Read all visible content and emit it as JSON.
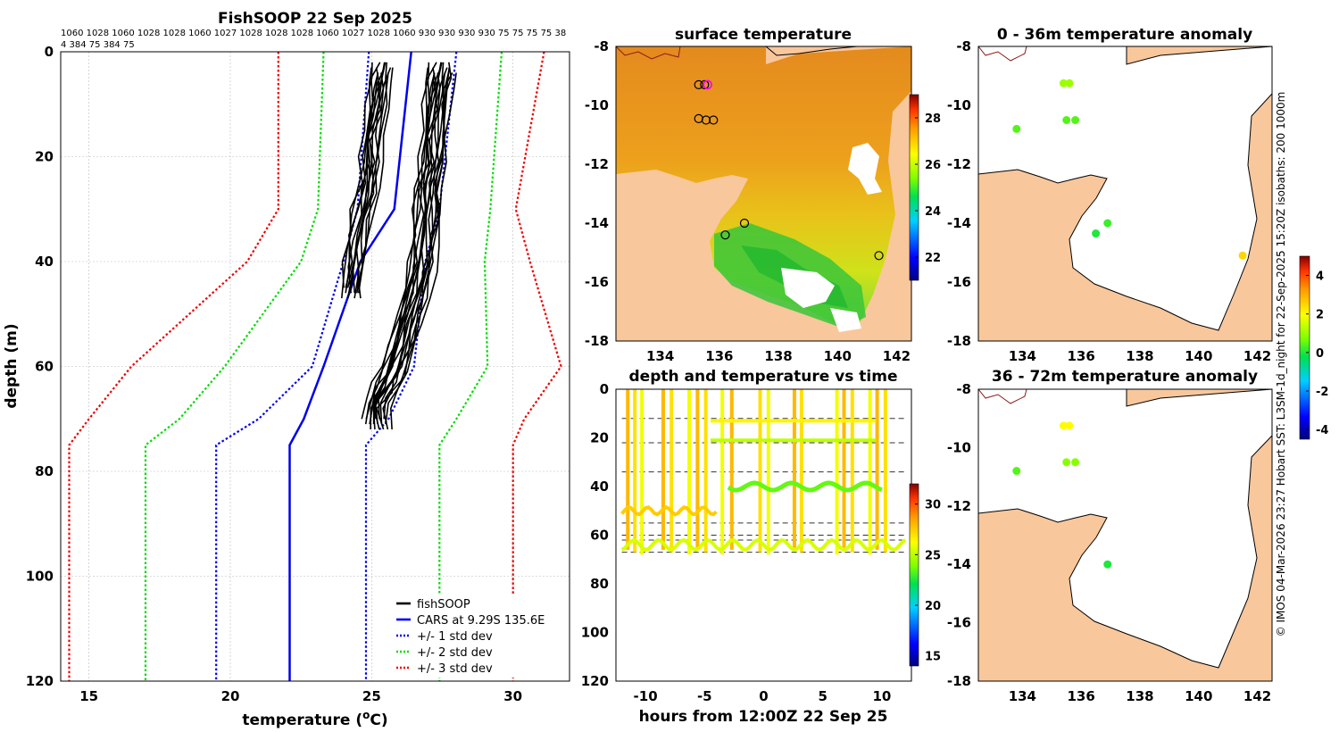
{
  "chart_data": [
    {
      "type": "line",
      "title": "FishSOOP 22 Sep 2025",
      "xlabel": "temperature (°C)",
      "xlabel_parts": [
        "temperature (",
        "o",
        "C)"
      ],
      "ylabel": "depth (m)",
      "xlim": [
        14,
        32
      ],
      "ylim": [
        120,
        0
      ],
      "xticks": [
        "15",
        "20",
        "25",
        "30"
      ],
      "yticks": [
        "0",
        "20",
        "40",
        "60",
        "80",
        "100",
        "120"
      ],
      "pressure_line1": "1060 1028 1060 1028 1028 1060 1027 1028 1028 1028 1060 1027 1028 1060 930 930 930 930 75 75 75 75 38",
      "pressure_line2": "4 384 75 384 75",
      "depths": [
        0,
        30,
        40,
        60,
        70,
        75,
        120
      ],
      "series": [
        {
          "name": "CARS at 9.29S 135.6E",
          "color": "#0000ee",
          "style": "solid",
          "temps": [
            26.4,
            25.8,
            24.6,
            23.3,
            22.6,
            22.1,
            22.1
          ]
        },
        {
          "name": "+/- 1 std dev",
          "color": "#0000ee",
          "style": "dotted",
          "temps": [
            24.9,
            24.5,
            24.0,
            22.9,
            21.0,
            19.5,
            19.5
          ],
          "temps2": [
            28.0,
            27.4,
            26.9,
            26.5,
            25.6,
            24.8,
            24.8
          ]
        },
        {
          "name": "+/- 2 std dev",
          "color": "#00dd00",
          "style": "dotted",
          "temps": [
            23.3,
            23.1,
            22.5,
            19.8,
            18.2,
            17.0,
            17.0
          ],
          "temps2": [
            29.6,
            29.2,
            29.0,
            29.1,
            28.0,
            27.4,
            27.4
          ]
        },
        {
          "name": "+/- 3 std dev",
          "color": "#ee0000",
          "style": "dotted",
          "temps": [
            21.7,
            21.7,
            20.6,
            16.5,
            15.0,
            14.3,
            14.3
          ],
          "temps2": [
            31.1,
            30.1,
            30.6,
            31.7,
            30.4,
            30.0,
            30.0
          ]
        }
      ],
      "legend": [
        {
          "label": "fishSOOP",
          "color": "#000000",
          "style": "solid"
        },
        {
          "label": "CARS at 9.29S 135.6E",
          "color": "#0000ee",
          "style": "solid"
        },
        {
          "label": "+/- 1 std dev",
          "color": "#0000ee",
          "style": "dotted"
        },
        {
          "label": "+/- 2 std dev",
          "color": "#00dd00",
          "style": "dotted"
        },
        {
          "label": "+/- 3 std dev",
          "color": "#ee0000",
          "style": "dotted"
        }
      ],
      "fishsoop_profiles": [
        {
          "group": "shallow",
          "count": 14,
          "depths": [
            2,
            5,
            10,
            15,
            20,
            25,
            30,
            35,
            40,
            45
          ],
          "temps": [
            25.4,
            25.3,
            25.2,
            25.0,
            25.0,
            24.9,
            24.7,
            24.5,
            24.4,
            24.3
          ]
        },
        {
          "group": "deep",
          "count": 18,
          "depths": [
            2,
            5,
            10,
            15,
            20,
            25,
            30,
            35,
            40,
            45,
            50,
            55,
            60,
            63,
            66,
            70
          ],
          "temps": [
            27.5,
            27.4,
            27.3,
            27.2,
            27.2,
            27.0,
            27.0,
            26.9,
            26.8,
            26.6,
            26.4,
            26.1,
            25.8,
            25.5,
            25.2,
            25.2
          ]
        }
      ]
    },
    {
      "type": "heatmap",
      "title": "surface temperature",
      "xticks": [
        "134",
        "136",
        "138",
        "140",
        "142"
      ],
      "yticks": [
        "-8",
        "-10",
        "-12",
        "-14",
        "-16",
        "-18"
      ],
      "xlim": [
        132.5,
        142.5
      ],
      "ylim": [
        -18,
        -8
      ],
      "colorbar": {
        "ticks": [
          "22",
          "24",
          "26",
          "28"
        ],
        "range": [
          21,
          29
        ]
      },
      "stations": [
        {
          "lon": 135.3,
          "lat": -9.3
        },
        {
          "lon": 135.5,
          "lat": -9.3
        },
        {
          "lon": 135.6,
          "lat": -9.3
        },
        {
          "lon": 135.3,
          "lat": -10.45
        },
        {
          "lon": 135.55,
          "lat": -10.5
        },
        {
          "lon": 135.8,
          "lat": -10.5
        },
        {
          "lon": 136.85,
          "lat": -14.0
        },
        {
          "lon": 136.2,
          "lat": -14.4
        },
        {
          "lon": 141.4,
          "lat": -15.1
        }
      ]
    },
    {
      "type": "scatter",
      "title": "depth and temperature vs time",
      "xlabel": "hours from 12:00Z 22 Sep 25",
      "xticks": [
        "-10",
        "-5",
        "0",
        "5",
        "10"
      ],
      "yticks": [
        "0",
        "20",
        "40",
        "60",
        "80",
        "100",
        "120"
      ],
      "xlim": [
        -12.5,
        12.5
      ],
      "ylim": [
        120,
        0
      ],
      "colorbar": {
        "ticks": [
          "15",
          "20",
          "25",
          "30"
        ],
        "range": [
          14,
          32
        ]
      },
      "reference_depths": [
        12,
        22,
        34,
        55,
        60,
        62,
        67
      ]
    },
    {
      "type": "scatter",
      "title": "0 - 36m temperature anomaly",
      "xticks": [
        "134",
        "136",
        "138",
        "140",
        "142"
      ],
      "yticks": [
        "-8",
        "-10",
        "-12",
        "-14",
        "-16",
        "-18"
      ],
      "points": [
        {
          "lon": 135.4,
          "lat": -9.25,
          "anomaly": 1.0
        },
        {
          "lon": 135.6,
          "lat": -9.25,
          "anomaly": 1.0
        },
        {
          "lon": 135.5,
          "lat": -10.5,
          "anomaly": 0.4
        },
        {
          "lon": 135.8,
          "lat": -10.5,
          "anomaly": 0.4
        },
        {
          "lon": 133.8,
          "lat": -10.8,
          "anomaly": 0.4
        },
        {
          "lon": 136.9,
          "lat": -14.0,
          "anomaly": 0.2
        },
        {
          "lon": 136.5,
          "lat": -14.35,
          "anomaly": 0.0
        },
        {
          "lon": 141.5,
          "lat": -15.1,
          "anomaly": 2.5
        }
      ]
    },
    {
      "type": "scatter",
      "title": "36 - 72m temperature anomaly",
      "xticks": [
        "134",
        "136",
        "138",
        "140",
        "142"
      ],
      "yticks": [
        "-8",
        "-10",
        "-12",
        "-14",
        "-16",
        "-18"
      ],
      "points": [
        {
          "lon": 135.4,
          "lat": -9.25,
          "anomaly": 2.0
        },
        {
          "lon": 135.6,
          "lat": -9.25,
          "anomaly": 2.0
        },
        {
          "lon": 135.5,
          "lat": -10.5,
          "anomaly": 0.8
        },
        {
          "lon": 135.8,
          "lat": -10.5,
          "anomaly": 0.8
        },
        {
          "lon": 133.8,
          "lat": -10.8,
          "anomaly": 0.4
        },
        {
          "lon": 136.9,
          "lat": -14.0,
          "anomaly": 0.0
        }
      ]
    }
  ],
  "anomaly_colorbar": {
    "ticks": [
      "4",
      "2",
      "0",
      "-2",
      "-4"
    ],
    "range": [
      -4.5,
      5
    ]
  },
  "side_text": "© IMOS 04-Mar-2026 23:27 Hobart SST: L3SM-1d_night for 22-Sep-2025 15:20Z isobaths: 200  1000m",
  "colors": {
    "land": "#f9c79c",
    "cars": "#0000ee",
    "std2": "#00dd00",
    "std3": "#ee0000"
  }
}
